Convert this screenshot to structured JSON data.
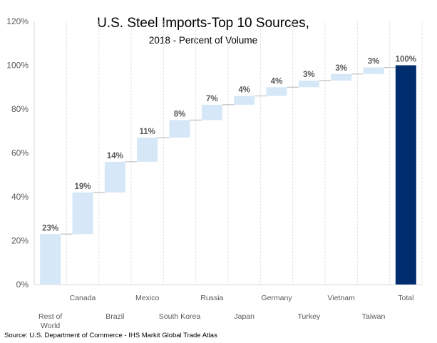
{
  "chart_data": {
    "type": "bar",
    "subtype": "waterfall",
    "title": "U.S. Steel Imports-Top 10 Sources,",
    "subtitle": "2018 - Percent of Volume",
    "xlabel": "",
    "ylabel": "",
    "ylim": [
      0,
      120
    ],
    "yticks": [
      0,
      20,
      40,
      60,
      80,
      100,
      120
    ],
    "ytick_labels": [
      "0%",
      "20%",
      "40%",
      "60%",
      "80%",
      "100%",
      "120%"
    ],
    "categories": [
      "Rest of World",
      "Canada",
      "Brazil",
      "Mexico",
      "South Korea",
      "Russia",
      "Japan",
      "Germany",
      "Turkey",
      "Vietnam",
      "Taiwan",
      "Total"
    ],
    "category_label_lines": [
      [
        "Rest of",
        "World"
      ],
      [
        "Canada"
      ],
      [
        "Brazil"
      ],
      [
        "Mexico"
      ],
      [
        "South Korea"
      ],
      [
        "Russia"
      ],
      [
        "Japan"
      ],
      [
        "Germany"
      ],
      [
        "Turkey"
      ],
      [
        "Vietnam"
      ],
      [
        "Taiwan"
      ],
      [
        "Total"
      ]
    ],
    "values": [
      23,
      19,
      14,
      11,
      8,
      7,
      4,
      4,
      3,
      3,
      3,
      100
    ],
    "data_labels": [
      "23%",
      "19%",
      "14%",
      "11%",
      "8%",
      "7%",
      "4%",
      "4%",
      "3%",
      "3%",
      "3%",
      "100%"
    ],
    "bases": [
      0,
      23,
      42,
      56,
      67,
      75,
      82,
      86,
      90,
      93,
      96,
      0
    ],
    "is_total": [
      false,
      false,
      false,
      false,
      false,
      false,
      false,
      false,
      false,
      false,
      false,
      true
    ],
    "colors": {
      "increment": "#d6e7f8",
      "total": "#002d6e",
      "connector": "#bfbfbf",
      "grid": "#d9d9d9"
    },
    "grid": "vertical dotted",
    "legend": "none",
    "source": "Source: U.S. Department of Commerce - IHS Markit Global Trade Atlas"
  }
}
